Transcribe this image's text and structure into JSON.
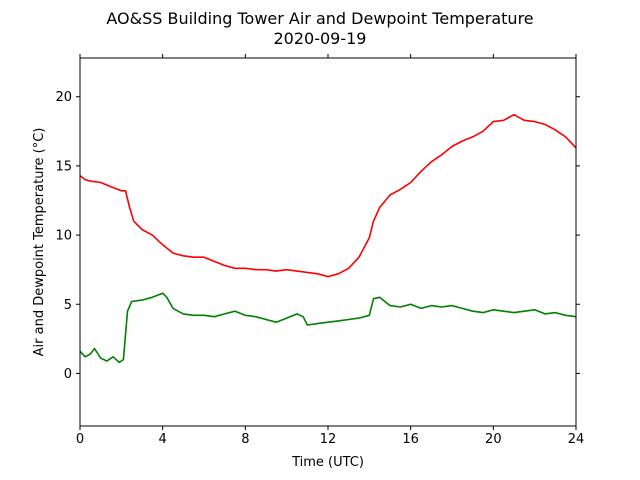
{
  "chart_data": {
    "type": "line",
    "title": "AO&SS Building Tower Air and Dewpoint Temperature",
    "subtitle": "2020-09-19",
    "xlabel": "Time (UTC)",
    "ylabel": "Air and Dewpoint Temperature (°C)",
    "xlim": [
      0,
      24
    ],
    "ylim": [
      -3.8,
      22.8
    ],
    "xticks": [
      0,
      4,
      8,
      12,
      16,
      20,
      24
    ],
    "xtick_labels": [
      "0",
      "4",
      "8",
      "12",
      "16",
      "20",
      "24"
    ],
    "yticks": [
      0,
      5,
      10,
      15,
      20
    ],
    "ytick_labels": [
      "0",
      "5",
      "10",
      "15",
      "20"
    ],
    "grid": false,
    "legend": "none",
    "series": [
      {
        "color": "#ff0000",
        "x": [
          0,
          0.25,
          0.5,
          1,
          1.5,
          2,
          2.2,
          2.4,
          2.6,
          3,
          3.5,
          4,
          4.5,
          5,
          5.5,
          6,
          6.5,
          7,
          7.5,
          8,
          8.5,
          9,
          9.5,
          10,
          10.5,
          11,
          11.5,
          12,
          12.5,
          13,
          13.5,
          14,
          14.2,
          14.5,
          15,
          15.5,
          16,
          16.5,
          17,
          17.5,
          18,
          18.5,
          19,
          19.5,
          20,
          20.5,
          21,
          21.5,
          22,
          22.5,
          23,
          23.5,
          24
        ],
        "y": [
          14.3,
          14.0,
          13.9,
          13.8,
          13.5,
          13.2,
          13.2,
          12.0,
          11.0,
          10.4,
          10.0,
          9.3,
          8.7,
          8.5,
          8.4,
          8.4,
          8.1,
          7.8,
          7.6,
          7.6,
          7.5,
          7.5,
          7.4,
          7.5,
          7.4,
          7.3,
          7.2,
          7.0,
          7.2,
          7.6,
          8.4,
          9.8,
          11.0,
          12.0,
          12.9,
          13.3,
          13.8,
          14.6,
          15.3,
          15.8,
          16.4,
          16.8,
          17.1,
          17.5,
          18.2,
          18.3,
          18.7,
          18.3,
          18.2,
          18.0,
          17.6,
          17.1,
          16.3
        ]
      },
      {
        "color": "#008000",
        "x": [
          0,
          0.25,
          0.5,
          0.7,
          1,
          1.3,
          1.6,
          1.9,
          2.1,
          2.3,
          2.5,
          3,
          3.5,
          4,
          4.2,
          4.5,
          5,
          5.5,
          6,
          6.5,
          7,
          7.5,
          8,
          8.5,
          9,
          9.5,
          10,
          10.5,
          10.8,
          11,
          11.5,
          12,
          12.5,
          13,
          13.5,
          14,
          14.2,
          14.5,
          15,
          15.5,
          16,
          16.5,
          17,
          17.5,
          18,
          18.5,
          19,
          19.5,
          20,
          20.5,
          21,
          21.5,
          22,
          22.5,
          23,
          23.5,
          24
        ],
        "y": [
          1.6,
          1.2,
          1.4,
          1.8,
          1.1,
          0.9,
          1.2,
          0.8,
          1.0,
          4.5,
          5.2,
          5.3,
          5.5,
          5.8,
          5.5,
          4.7,
          4.3,
          4.2,
          4.2,
          4.1,
          4.3,
          4.5,
          4.2,
          4.1,
          3.9,
          3.7,
          4.0,
          4.3,
          4.1,
          3.5,
          3.6,
          3.7,
          3.8,
          3.9,
          4.0,
          4.2,
          5.4,
          5.5,
          4.9,
          4.8,
          5.0,
          4.7,
          4.9,
          4.8,
          4.9,
          4.7,
          4.5,
          4.4,
          4.6,
          4.5,
          4.4,
          4.5,
          4.6,
          4.3,
          4.4,
          4.2,
          4.1
        ]
      }
    ]
  }
}
